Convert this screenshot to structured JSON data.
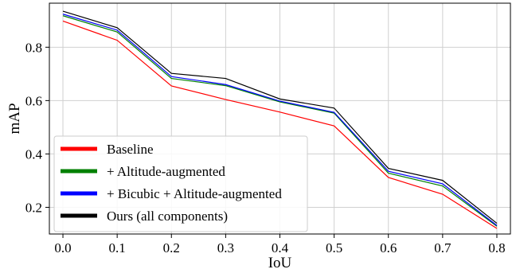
{
  "chart_data": {
    "type": "line",
    "title": "",
    "xlabel": "IoU",
    "ylabel": "mAP",
    "x": [
      0.0,
      0.1,
      0.2,
      0.3,
      0.4,
      0.5,
      0.6,
      0.7,
      0.8
    ],
    "x_tick_labels": [
      "0.0",
      "0.1",
      "0.2",
      "0.3",
      "0.4",
      "0.5",
      "0.6",
      "0.7",
      "0.8"
    ],
    "y_ticks": [
      0.2,
      0.4,
      0.6,
      0.8
    ],
    "y_tick_labels": [
      "0.2",
      "0.4",
      "0.6",
      "0.8"
    ],
    "xlim": [
      -0.025,
      0.825
    ],
    "ylim": [
      0.1,
      0.965
    ],
    "grid": true,
    "legend_position": "bottom-left",
    "series": [
      {
        "name": "Baseline",
        "color": "#ff0000",
        "values": [
          0.898,
          0.826,
          0.655,
          0.604,
          0.557,
          0.505,
          0.312,
          0.249,
          0.121
        ]
      },
      {
        "name": "+ Altitude-augmented",
        "color": "#008000",
        "values": [
          0.918,
          0.857,
          0.683,
          0.656,
          0.595,
          0.553,
          0.328,
          0.28,
          0.129
        ]
      },
      {
        "name": "+ Bicubic + Altitude-augmented",
        "color": "#0000ff",
        "values": [
          0.924,
          0.864,
          0.69,
          0.66,
          0.598,
          0.556,
          0.335,
          0.288,
          0.132
        ]
      },
      {
        "name": "Ours (all components)",
        "color": "#000000",
        "values": [
          0.935,
          0.873,
          0.702,
          0.683,
          0.606,
          0.572,
          0.346,
          0.301,
          0.14
        ]
      }
    ]
  }
}
